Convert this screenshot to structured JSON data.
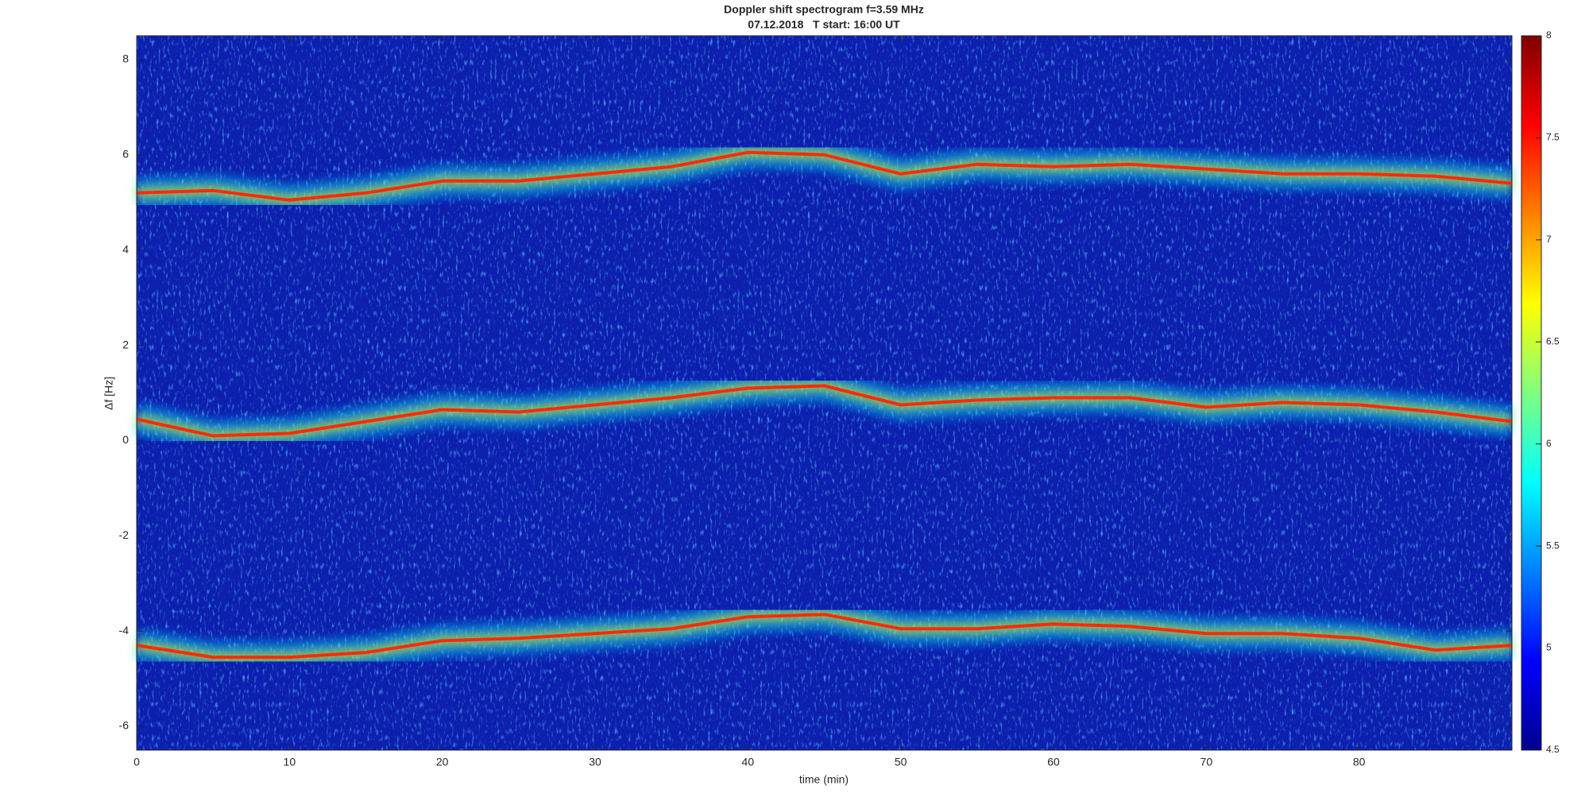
{
  "chart_data": {
    "type": "spectrogram",
    "title": "Doppler shift spectrogram f=3.59 MHz",
    "subtitle": "07.12.2018   T start: 16:00 UT",
    "x_label": "time (min)",
    "y_label": "Δf [Hz]",
    "xlim": [
      0,
      90
    ],
    "xticks": [
      0,
      10,
      20,
      30,
      40,
      50,
      60,
      70,
      80
    ],
    "ylim": [
      -6.5,
      8.5
    ],
    "yticks": [
      -6,
      -4,
      -2,
      0,
      2,
      4,
      6,
      8
    ],
    "clim": [
      4.5,
      8
    ],
    "cticks": [
      4.5,
      5,
      5.5,
      6,
      6.5,
      7,
      7.5,
      8
    ],
    "x": [
      0,
      5,
      10,
      15,
      20,
      25,
      30,
      35,
      40,
      45,
      50,
      55,
      60,
      65,
      70,
      75,
      80,
      85,
      90
    ],
    "series": [
      {
        "color": "#ff2a00",
        "values": [
          5.2,
          5.25,
          5.05,
          5.2,
          5.45,
          5.45,
          5.6,
          5.75,
          6.05,
          6.0,
          5.6,
          5.8,
          5.75,
          5.8,
          5.7,
          5.6,
          5.6,
          5.55,
          5.4
        ]
      },
      {
        "color": "#ff2a00",
        "values": [
          0.45,
          0.1,
          0.15,
          0.4,
          0.65,
          0.6,
          0.75,
          0.9,
          1.1,
          1.15,
          0.75,
          0.85,
          0.9,
          0.9,
          0.7,
          0.8,
          0.75,
          0.6,
          0.4
        ]
      },
      {
        "color": "#ff2a00",
        "values": [
          -4.3,
          -4.55,
          -4.55,
          -4.45,
          -4.2,
          -4.15,
          -4.05,
          -3.95,
          -3.7,
          -3.65,
          -3.95,
          -3.95,
          -3.85,
          -3.9,
          -4.05,
          -4.05,
          -4.15,
          -4.4,
          -4.3
        ]
      }
    ]
  }
}
